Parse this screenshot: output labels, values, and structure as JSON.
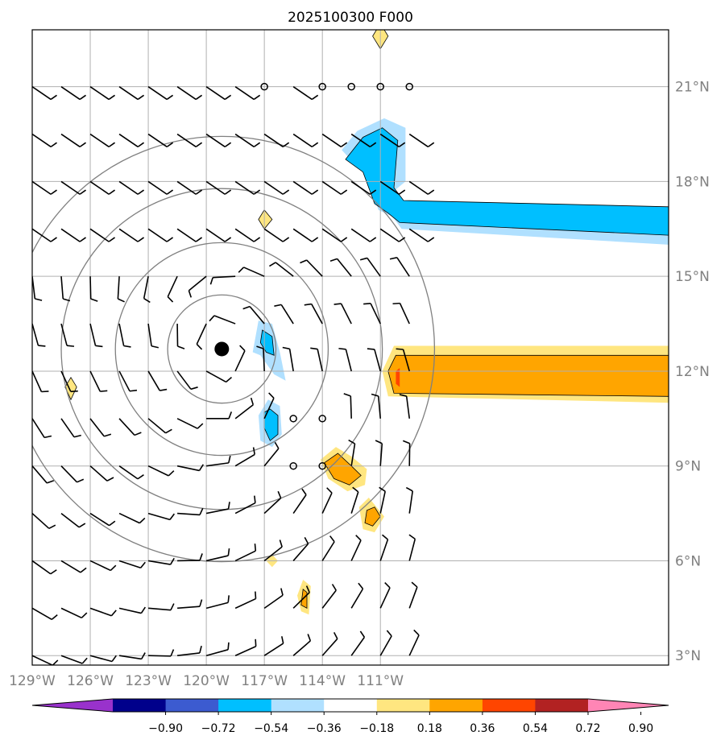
{
  "title": "2025100300 F000",
  "map": {
    "lon_range": [
      -129,
      -96.1
    ],
    "lat_range": [
      2.7,
      22.8
    ],
    "lon_ticks": [
      {
        "value": -129,
        "label": "129°W"
      },
      {
        "value": -126,
        "label": "126°W"
      },
      {
        "value": -123,
        "label": "123°W"
      },
      {
        "value": -120,
        "label": "120°W"
      },
      {
        "value": -117,
        "label": "117°W"
      },
      {
        "value": -114,
        "label": "114°W"
      },
      {
        "value": -111,
        "label": "111°W"
      }
    ],
    "lat_ticks": [
      {
        "value": 3,
        "label": "3°N"
      },
      {
        "value": 6,
        "label": "6°N"
      },
      {
        "value": 9,
        "label": "9°N"
      },
      {
        "value": 12,
        "label": "12°N"
      },
      {
        "value": 15,
        "label": "15°N"
      },
      {
        "value": 18,
        "label": "18°N"
      },
      {
        "value": 21,
        "label": "21°N"
      }
    ],
    "grid": true,
    "gridline_color": "#b0b0b0",
    "range_ring_color": "#808080",
    "storm_center": {
      "lon": -119.2,
      "lat": 12.7
    },
    "range_rings_deg": [
      2.8,
      5.5,
      8.3,
      11.0
    ],
    "wind_barbs": {
      "lons": [
        -129,
        -127.5,
        -126,
        -124.5,
        -123,
        -121.5,
        -120,
        -118.5,
        -117,
        -115.5,
        -114,
        -112.5,
        -111,
        -109.5
      ],
      "lats": [
        21,
        19.5,
        18,
        16.5,
        15,
        13.5,
        12,
        10.5,
        9,
        7.5,
        6,
        4.5,
        3
      ],
      "calm_points": [
        [
          -117,
          21
        ],
        [
          -114,
          21
        ],
        [
          -112.5,
          21
        ],
        [
          -111,
          21
        ],
        [
          -109.5,
          21
        ],
        [
          -115.5,
          10.5
        ],
        [
          -114,
          10.5
        ],
        [
          -115.5,
          9
        ],
        [
          -114,
          9
        ]
      ]
    },
    "shaded_regions": [
      {
        "name": "negative-east-north-band",
        "color": "#00bfff",
        "level": "-0.54 to -0.36"
      },
      {
        "name": "negative-near-center",
        "color": "#00bfff",
        "level": "-0.54 to -0.36"
      },
      {
        "name": "positive-east-edge",
        "color": "#ffa500",
        "level": "0.36 to 0.72"
      },
      {
        "name": "positive-southeast",
        "color": "#ffa500",
        "level": "0.36 to 0.54"
      }
    ]
  },
  "colorbar": {
    "colors": [
      "#9932cc",
      "#00008b",
      "#3c5bd0",
      "#00bfff",
      "#b0e0ff",
      "#ffffff",
      "#ffe680",
      "#ffa500",
      "#ff4500",
      "#b22222",
      "#ff85b5"
    ],
    "tick_labels": [
      "−0.90",
      "−0.72",
      "−0.54",
      "−0.36",
      "−0.18",
      "0.18",
      "0.36",
      "0.54",
      "0.72",
      "0.90"
    ]
  }
}
